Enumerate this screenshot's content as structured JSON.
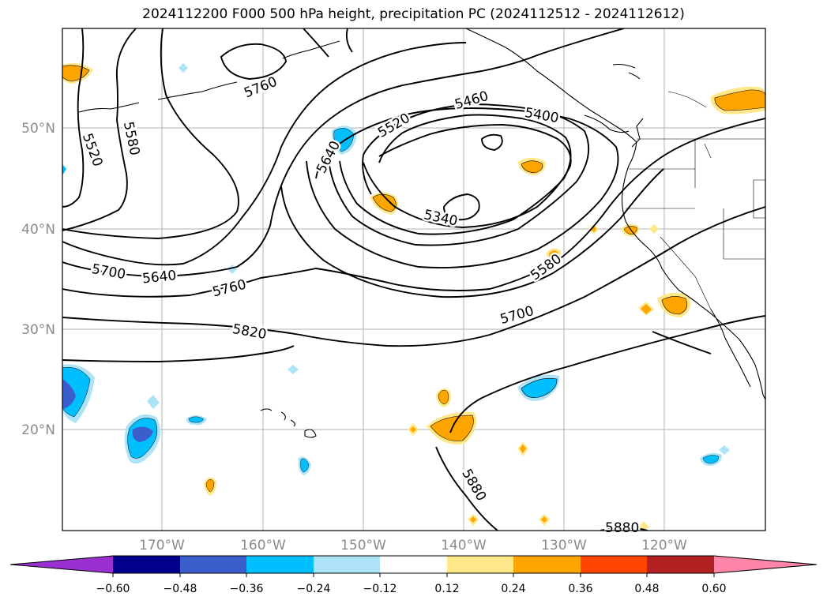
{
  "title": "2024112200 F000 500 hPa height, precipitation PC (2024112512 - 2024112612)",
  "lon_ticks": [
    "170°W",
    "160°W",
    "150°W",
    "140°W",
    "130°W",
    "120°W"
  ],
  "lat_ticks": [
    "50°N",
    "40°N",
    "30°N",
    "20°N"
  ],
  "contour_labels": [
    "5760",
    "5520",
    "5580",
    "5640",
    "5520",
    "5460",
    "5400",
    "5340",
    "5700",
    "5640",
    "5760",
    "5820",
    "5700",
    "5580",
    "5880",
    "5880"
  ],
  "colorbar": {
    "ticks": [
      "−0.60",
      "−0.48",
      "−0.36",
      "−0.24",
      "−0.12",
      "0.12",
      "0.24",
      "0.36",
      "0.48",
      "0.60"
    ],
    "colors": [
      "#9b30d0",
      "#00008b",
      "#3a5fcd",
      "#00bfff",
      "#aee3f7",
      "#ffffff",
      "#ffe88a",
      "#ffa500",
      "#ff4500",
      "#b22222",
      "#ff86a8"
    ]
  },
  "map_colors": {
    "land": "#ffffff",
    "ocean": "#ffffff",
    "grid": "#b0b0b0",
    "contour": "#000000"
  }
}
